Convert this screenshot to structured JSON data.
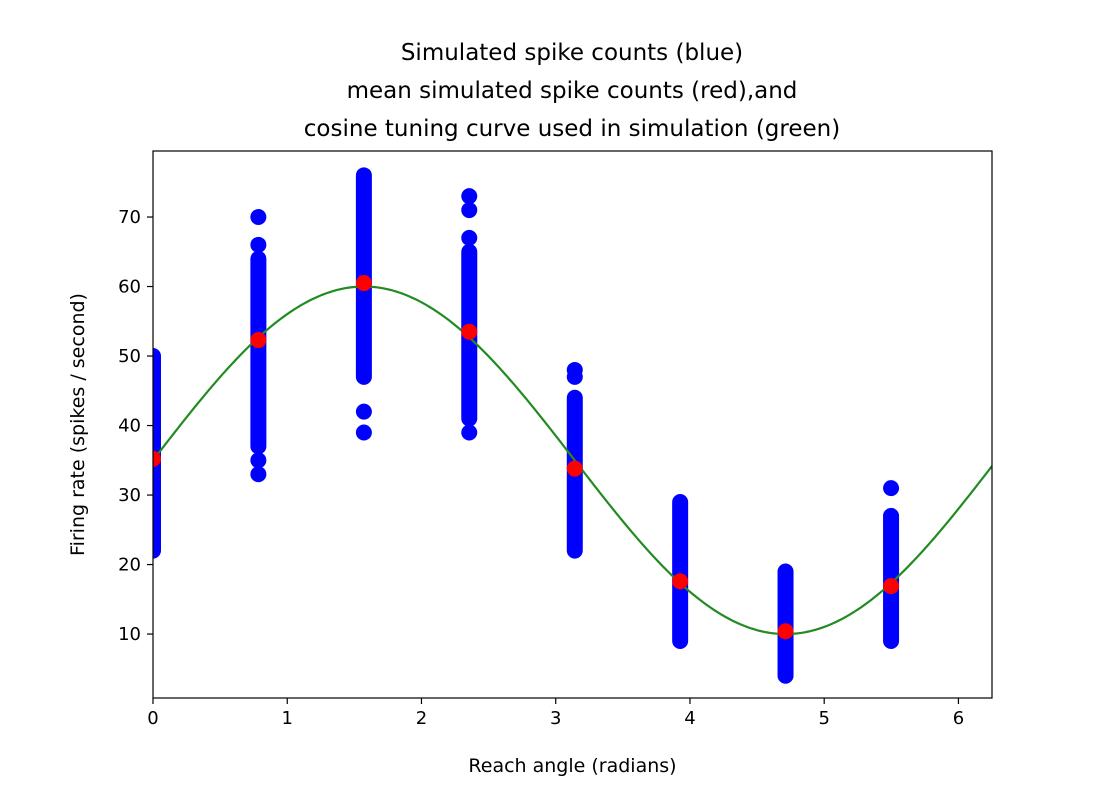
{
  "chart_data": {
    "type": "scatter",
    "title_lines": [
      "Simulated spike counts (blue)",
      "mean simulated spike counts (red),and",
      "cosine tuning curve used in simulation (green)"
    ],
    "xlabel": "Reach angle (radians)",
    "ylabel": "Firing rate (spikes / second)",
    "xlim": [
      0,
      6.25
    ],
    "ylim": [
      0.8,
      79.5
    ],
    "xticks": [
      0,
      1,
      2,
      3,
      4,
      5,
      6
    ],
    "yticks": [
      10,
      20,
      30,
      40,
      50,
      60,
      70
    ],
    "grid": false,
    "colors": {
      "trials": "#0000ff",
      "means": "#ff0000",
      "curve": "#228b22"
    },
    "series": [
      {
        "kind": "trials",
        "columns": [
          {
            "x": 0.0,
            "ymin": 22,
            "ymax": 50,
            "outliers": []
          },
          {
            "x": 0.785,
            "ymin": 37,
            "ymax": 64,
            "outliers": [
              66,
              70,
              35,
              33
            ]
          },
          {
            "x": 1.571,
            "ymin": 47,
            "ymax": 76,
            "outliers": [
              42,
              39
            ]
          },
          {
            "x": 2.356,
            "ymin": 41,
            "ymax": 65,
            "outliers": [
              67,
              71,
              73,
              39
            ]
          },
          {
            "x": 3.142,
            "ymin": 22,
            "ymax": 44,
            "outliers": [
              47,
              48
            ]
          },
          {
            "x": 3.927,
            "ymin": 9,
            "ymax": 29,
            "outliers": []
          },
          {
            "x": 4.712,
            "ymin": 4,
            "ymax": 19,
            "outliers": []
          },
          {
            "x": 5.498,
            "ymin": 9,
            "ymax": 27,
            "outliers": [
              31
            ]
          }
        ]
      },
      {
        "kind": "means",
        "x": [
          0.0,
          0.785,
          1.571,
          2.356,
          3.142,
          3.927,
          4.712,
          5.498
        ],
        "y": [
          35.2,
          52.3,
          60.5,
          53.5,
          33.8,
          17.6,
          10.4,
          16.9
        ]
      },
      {
        "kind": "curve",
        "function": "35 + 25*sin(x)",
        "x_range": [
          0,
          6.25
        ],
        "baseline": 35,
        "amplitude": 25
      }
    ]
  }
}
